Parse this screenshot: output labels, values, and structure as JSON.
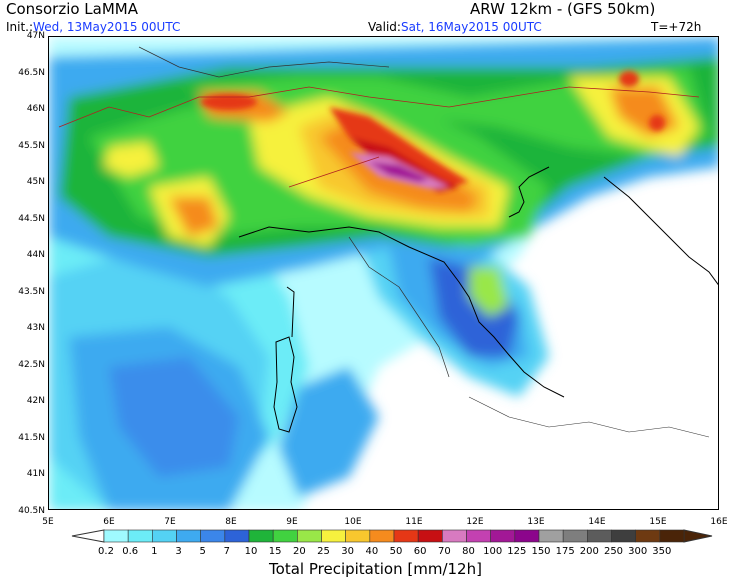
{
  "header": {
    "org": "Consorzio LaMMA",
    "model": "ARW 12km - (GFS 50km)",
    "init_label": "Init.:",
    "init_value": "Wed, 13May2015 00UTC",
    "valid_label": "Valid:",
    "valid_value": "Sat, 16May2015 00UTC",
    "forecast_step": "T=+72h"
  },
  "map": {
    "lat_labels": [
      "47N",
      "46.5N",
      "46N",
      "45.5N",
      "45N",
      "44.5N",
      "44N",
      "43.5N",
      "43N",
      "42.5N",
      "42N",
      "41.5N",
      "41N",
      "40.5N"
    ],
    "lon_labels": [
      "5E",
      "6E",
      "7E",
      "8E",
      "9E",
      "10E",
      "11E",
      "12E",
      "13E",
      "14E",
      "15E",
      "16E"
    ]
  },
  "colorbar": {
    "title": "Total Precipitation [mm/12h]",
    "labels": [
      "0.2",
      "0.6",
      "1",
      "3",
      "5",
      "7",
      "10",
      "15",
      "20",
      "25",
      "30",
      "40",
      "50",
      "60",
      "70",
      "80",
      "100",
      "125",
      "150",
      "175",
      "200",
      "250",
      "300",
      "350"
    ],
    "colors": [
      "#9ffaff",
      "#6cecf7",
      "#54d2f4",
      "#3eaaf0",
      "#3b86ea",
      "#2d63d8",
      "#1fb43a",
      "#41d240",
      "#99e748",
      "#f6f13e",
      "#f8c72e",
      "#f58b1e",
      "#e53716",
      "#c70f13",
      "#d87ac0",
      "#c341b1",
      "#a21896",
      "#8c058c",
      "#a0a0a0",
      "#7e7e7e",
      "#5c5c5c",
      "#3e3e3e",
      "#6e3a12",
      "#4a2408"
    ]
  }
}
